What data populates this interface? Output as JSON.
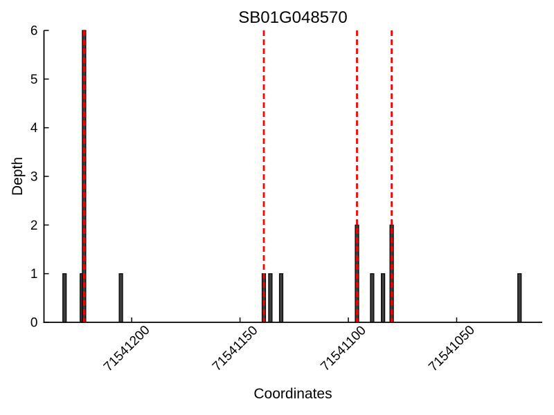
{
  "chart_data": {
    "type": "bar",
    "title": "SB01G048570",
    "xlabel": "Coordinates",
    "ylabel": "Depth",
    "x_axis_inverted": true,
    "xlim_left": 71541240.5,
    "xlim_right": 71541010.5,
    "ylim": [
      0,
      6
    ],
    "grid": false,
    "xticks": [
      {
        "value": 71541200,
        "label": "71541200"
      },
      {
        "value": 71541150,
        "label": "71541150"
      },
      {
        "value": 71541100,
        "label": "71541100"
      },
      {
        "value": 71541050,
        "label": "71541050"
      }
    ],
    "yticks": [
      {
        "value": 0,
        "label": "0"
      },
      {
        "value": 1,
        "label": "1"
      },
      {
        "value": 2,
        "label": "2"
      },
      {
        "value": 3,
        "label": "3"
      },
      {
        "value": 4,
        "label": "4"
      },
      {
        "value": 5,
        "label": "5"
      },
      {
        "value": 6,
        "label": "6"
      }
    ],
    "bars": [
      {
        "coord": 71541231,
        "depth": 1
      },
      {
        "coord": 71541223,
        "depth": 1
      },
      {
        "coord": 71541222,
        "depth": 6
      },
      {
        "coord": 71541205,
        "depth": 1
      },
      {
        "coord": 71541139,
        "depth": 1
      },
      {
        "coord": 71541136,
        "depth": 1
      },
      {
        "coord": 71541131,
        "depth": 1
      },
      {
        "coord": 71541096,
        "depth": 2
      },
      {
        "coord": 71541089,
        "depth": 1
      },
      {
        "coord": 71541084,
        "depth": 1
      },
      {
        "coord": 71541080,
        "depth": 2
      },
      {
        "coord": 71541021,
        "depth": 1
      }
    ],
    "marker_lines": [
      71541222,
      71541139,
      71541096,
      71541080
    ],
    "colors": {
      "bar_fill": "#3d3d3d",
      "bar_edge": "#000000",
      "marker_line": "#ff0000",
      "axis": "#000000",
      "background": "#ffffff"
    }
  }
}
